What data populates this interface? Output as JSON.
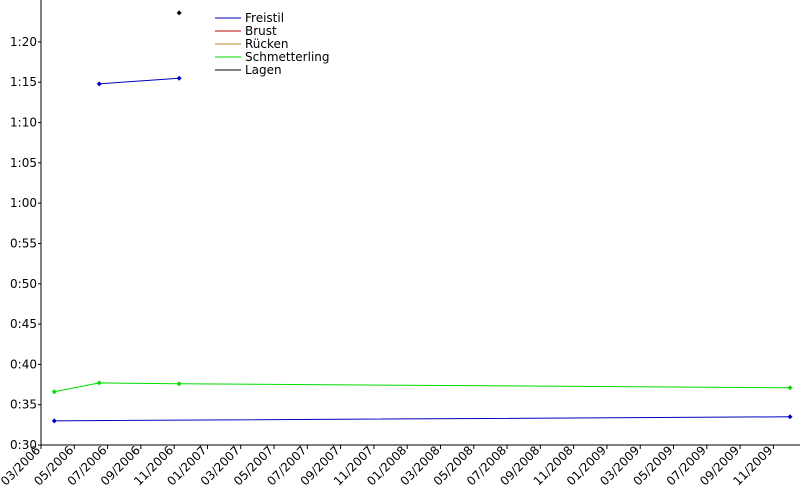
{
  "chart_data": {
    "type": "line",
    "series": [
      {
        "name": "Freistil",
        "color": "#0000c0",
        "x": [
          3.5,
          8.3,
          8.3,
          0.8,
          45.0
        ],
        "values": [
          74.8,
          75.5,
          null,
          33.0,
          33.5
        ]
      },
      {
        "name": "Brust",
        "color": "#c00000",
        "x": [],
        "values": []
      },
      {
        "name": "Rücken",
        "color": "#b08a20",
        "x": [],
        "values": []
      },
      {
        "name": "Schmetterling",
        "color": "#00dd00",
        "x": [
          0.8,
          3.5,
          8.3,
          45.0
        ],
        "values": [
          36.6,
          37.7,
          37.6,
          37.1
        ]
      },
      {
        "name": "Lagen",
        "color": "#000000",
        "x": [
          8.3
        ],
        "values": [
          83.6
        ]
      }
    ],
    "xlim": [
      0,
      45.6
    ],
    "xticks": [
      {
        "value": 0,
        "label": "03/2006"
      },
      {
        "value": 2,
        "label": "05/2006"
      },
      {
        "value": 4,
        "label": "07/2006"
      },
      {
        "value": 6,
        "label": "09/2006"
      },
      {
        "value": 8,
        "label": "11/2006"
      },
      {
        "value": 10,
        "label": "01/2007"
      },
      {
        "value": 12,
        "label": "03/2007"
      },
      {
        "value": 14,
        "label": "05/2007"
      },
      {
        "value": 16,
        "label": "07/2007"
      },
      {
        "value": 18,
        "label": "09/2007"
      },
      {
        "value": 20,
        "label": "11/2007"
      },
      {
        "value": 22,
        "label": "01/2008"
      },
      {
        "value": 24,
        "label": "03/2008"
      },
      {
        "value": 26,
        "label": "05/2008"
      },
      {
        "value": 28,
        "label": "07/2008"
      },
      {
        "value": 30,
        "label": "09/2008"
      },
      {
        "value": 32,
        "label": "11/2008"
      },
      {
        "value": 34,
        "label": "01/2009"
      },
      {
        "value": 36,
        "label": "03/2009"
      },
      {
        "value": 38,
        "label": "05/2009"
      },
      {
        "value": 40,
        "label": "07/2009"
      },
      {
        "value": 42,
        "label": "09/2009"
      },
      {
        "value": 44,
        "label": "11/2009"
      }
    ],
    "ylim": [
      30,
      85.2
    ],
    "yticks": [
      {
        "value": 30,
        "label": "0:30"
      },
      {
        "value": 35,
        "label": "0:35"
      },
      {
        "value": 40,
        "label": "0:40"
      },
      {
        "value": 45,
        "label": "0:45"
      },
      {
        "value": 50,
        "label": "0:50"
      },
      {
        "value": 55,
        "label": "0:55"
      },
      {
        "value": 60,
        "label": "1:00"
      },
      {
        "value": 65,
        "label": "1:05"
      },
      {
        "value": 70,
        "label": "1:10"
      },
      {
        "value": 75,
        "label": "1:15"
      },
      {
        "value": 80,
        "label": "1:20"
      }
    ]
  }
}
